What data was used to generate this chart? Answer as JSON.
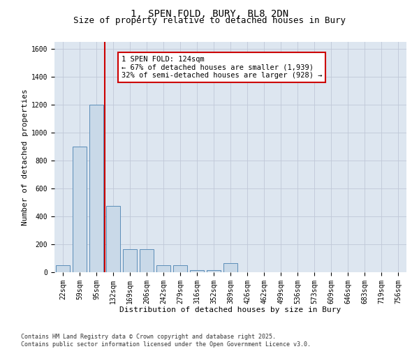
{
  "title": "1, SPEN FOLD, BURY, BL8 2DN",
  "subtitle": "Size of property relative to detached houses in Bury",
  "xlabel": "Distribution of detached houses by size in Bury",
  "ylabel": "Number of detached properties",
  "categories": [
    "22sqm",
    "59sqm",
    "95sqm",
    "132sqm",
    "169sqm",
    "206sqm",
    "242sqm",
    "279sqm",
    "316sqm",
    "352sqm",
    "389sqm",
    "426sqm",
    "462sqm",
    "499sqm",
    "536sqm",
    "573sqm",
    "609sqm",
    "646sqm",
    "683sqm",
    "719sqm",
    "756sqm"
  ],
  "values": [
    50,
    900,
    1200,
    475,
    165,
    165,
    50,
    50,
    15,
    15,
    65,
    0,
    0,
    0,
    0,
    0,
    0,
    0,
    0,
    0,
    0
  ],
  "bar_color": "#c9d9e8",
  "bar_edge_color": "#5b8db8",
  "grid_color": "#c0c8d8",
  "background_color": "#dde6f0",
  "red_line_x": 2.5,
  "annotation_text": "1 SPEN FOLD: 124sqm\n← 67% of detached houses are smaller (1,939)\n32% of semi-detached houses are larger (928) →",
  "annotation_box_color": "#ffffff",
  "annotation_box_edge": "#cc0000",
  "footnote": "Contains HM Land Registry data © Crown copyright and database right 2025.\nContains public sector information licensed under the Open Government Licence v3.0.",
  "ylim": [
    0,
    1650
  ],
  "yticks": [
    0,
    200,
    400,
    600,
    800,
    1000,
    1200,
    1400,
    1600
  ],
  "title_fontsize": 10,
  "subtitle_fontsize": 9,
  "tick_fontsize": 7,
  "label_fontsize": 8,
  "footnote_fontsize": 6,
  "annot_fontsize": 7.5
}
